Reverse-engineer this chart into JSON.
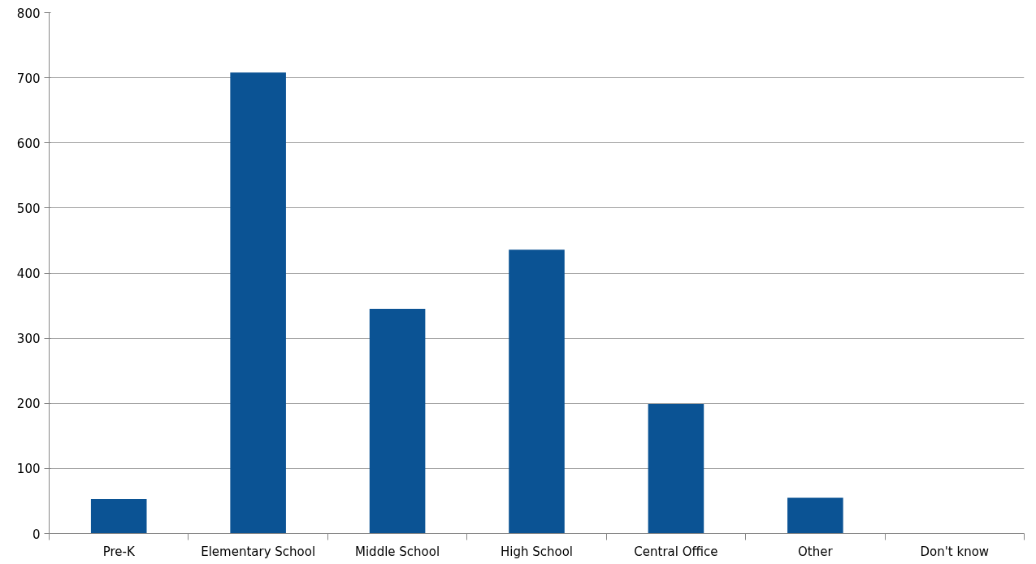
{
  "chart_data": {
    "type": "bar",
    "categories": [
      "Pre-K",
      "Elementary School",
      "Middle School",
      "High School",
      "Central Office",
      "Other",
      "Don't know"
    ],
    "values": [
      53,
      708,
      345,
      436,
      199,
      55,
      0
    ],
    "color": "#0b5394",
    "ylim": [
      0,
      800
    ],
    "yticks": [
      0,
      100,
      200,
      300,
      400,
      500,
      600,
      700,
      800
    ],
    "grid": "y"
  }
}
